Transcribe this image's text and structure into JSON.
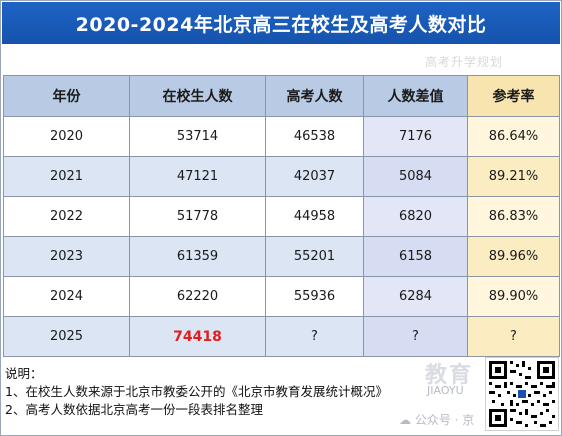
{
  "title": "2020-2024年北京高三在校生及高考人数对比",
  "watermark_top": "高考升学规划",
  "table": {
    "headers": [
      "年份",
      "在校生人数",
      "高考人数",
      "人数差值",
      "参考率"
    ],
    "rows": [
      [
        "2020",
        "53714",
        "46538",
        "7176",
        "86.64%"
      ],
      [
        "2021",
        "47121",
        "42037",
        "5084",
        "89.21%"
      ],
      [
        "2022",
        "51778",
        "44958",
        "6820",
        "86.83%"
      ],
      [
        "2023",
        "61359",
        "55201",
        "6158",
        "89.96%"
      ],
      [
        "2024",
        "62220",
        "55936",
        "6284",
        "89.90%"
      ],
      [
        "2025",
        "74418",
        "?",
        "?",
        "?"
      ]
    ]
  },
  "notes": {
    "heading": "说明：",
    "line1": "1、在校生人数来源于北京市教委公开的《北京市教育发展统计概况》",
    "line2": "2、高考人数依据北京高考一份一段表排名整理"
  },
  "watermark": {
    "brand": "教育",
    "account": "公众号 · 京",
    "latin": "JIAOYU"
  },
  "colors": {
    "title_bg": "#1553ad",
    "header_bg": "#b9cbe4",
    "rate_header_bg": "#f7e4ae",
    "highlight": "#e31e1e"
  }
}
